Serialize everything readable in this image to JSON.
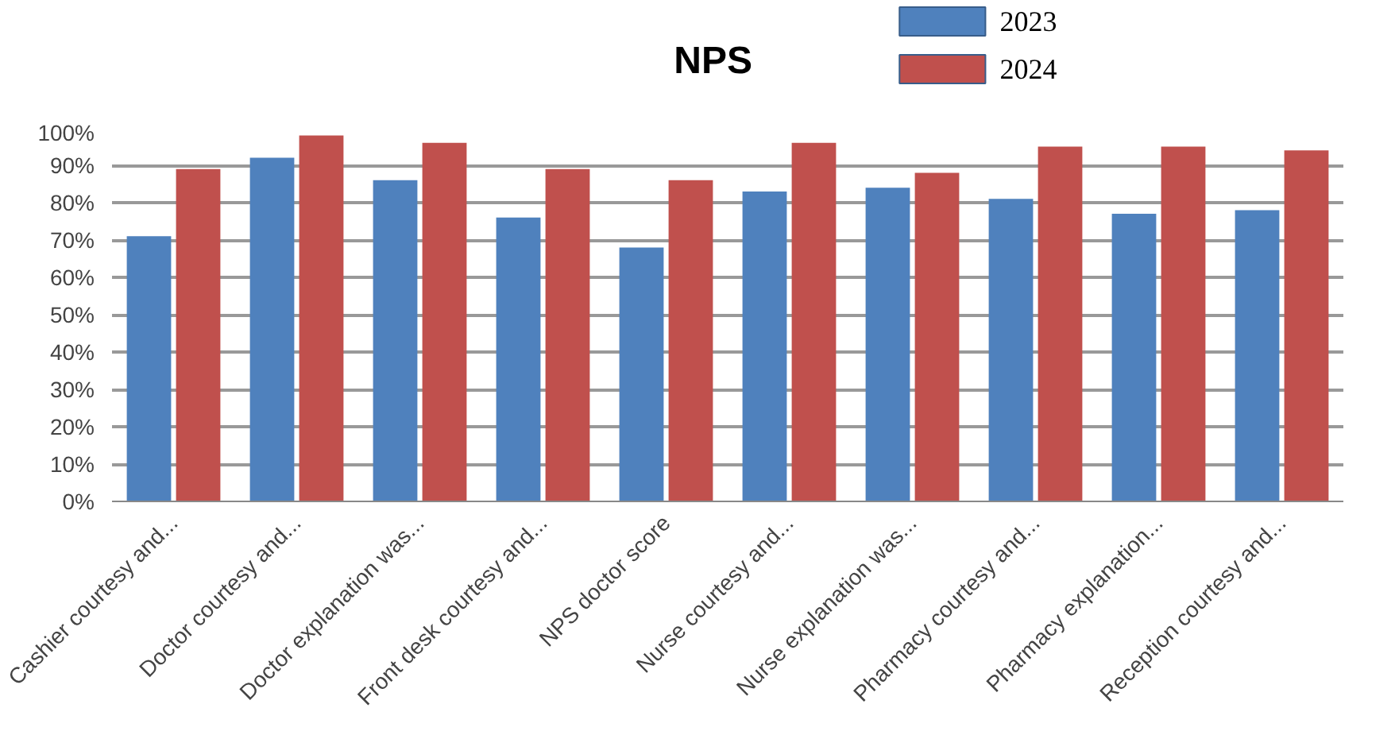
{
  "chart_data": {
    "type": "bar",
    "title": "NPS",
    "categories": [
      "Cashier courtesy and...",
      "Doctor courtesy and...",
      "Doctor explanation was...",
      "Front desk courtesy and...",
      "NPS doctor score",
      "Nurse courtesy and...",
      "Nurse explanation was...",
      "Pharmacy courtesy and...",
      "Pharmacy explanation...",
      "Reception courtesy and..."
    ],
    "series": [
      {
        "name": "2023",
        "color": "#4f81bd",
        "values": [
          71,
          92,
          86,
          76,
          68,
          83,
          84,
          81,
          77,
          78
        ]
      },
      {
        "name": "2024",
        "color": "#c0504d",
        "values": [
          89,
          98,
          96,
          89,
          86,
          96,
          88,
          95,
          95,
          94
        ]
      }
    ],
    "ylim": [
      0,
      100
    ],
    "yticks": [
      {
        "value": 0,
        "label": "0%"
      },
      {
        "value": 10,
        "label": "10%"
      },
      {
        "value": 20,
        "label": "20%"
      },
      {
        "value": 30,
        "label": "30%"
      },
      {
        "value": 40,
        "label": "40%"
      },
      {
        "value": 50,
        "label": "50%"
      },
      {
        "value": 60,
        "label": "60%"
      },
      {
        "value": 70,
        "label": "70%"
      },
      {
        "value": 80,
        "label": "80%"
      },
      {
        "value": 90,
        "label": "90%"
      },
      {
        "value": 100,
        "label": "100%"
      }
    ],
    "grid": "y",
    "legend": "top"
  }
}
